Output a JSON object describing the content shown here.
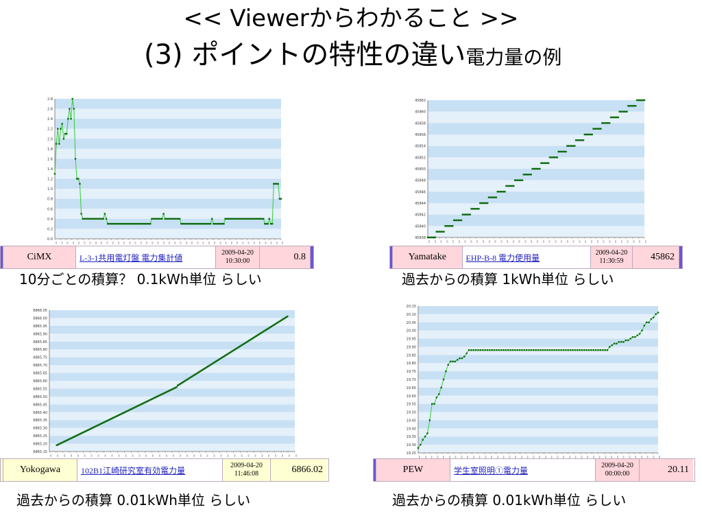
{
  "header": {
    "title": "<< Viewerからわかること >>",
    "subtitle": "(3) ポイントの特性の違い",
    "subtitle_suffix": "電力量の例"
  },
  "colors": {
    "plot_bg_light": "#e4f0fa",
    "plot_bg_dark": "#c8e0f4",
    "line": "#33cc33",
    "marker": "#0e6b0e",
    "cell_pink": "#ffd6db",
    "cell_yellow": "#ffffd4",
    "link": "#1f1fbf"
  },
  "panels": [
    {
      "vendor": "CiMX",
      "point_name": "L-3-1共用電灯盤 電力集計値",
      "date": "2009-04-20",
      "time": "10:30:00",
      "value": "0.8",
      "caption": "10分ごとの積算？ 0.1kWh単位 らしい",
      "theme": "pink"
    },
    {
      "vendor": "Yamatake",
      "point_name": "EHP-B-8 電力使用量",
      "date": "2009-04-20",
      "time": "11:30:59",
      "value": "45862",
      "caption": "過去からの積算 1kWh単位 らしい",
      "theme": "pink"
    },
    {
      "vendor": "Yokogawa",
      "point_name": "102B1江崎研究室有効電力量",
      "date": "2009-04-20",
      "time": "11:46:08",
      "value": "6866.02",
      "caption": "過去からの積算 0.01kWh単位 らしい",
      "theme": "yellow"
    },
    {
      "vendor": "PEW",
      "point_name": "学生室照明①電力量",
      "date": "2009-04-20",
      "time": "00:00:00",
      "value": "20.11",
      "caption": "過去からの積算 0.01kWh単位 らしい",
      "theme": "pink"
    }
  ],
  "chart_data": [
    {
      "type": "line",
      "title": "",
      "ylim": [
        0.0,
        2.8
      ],
      "yticks": [
        "0.0",
        "0.2",
        "0.4",
        "0.6",
        "0.8",
        "1.0",
        "1.2",
        "1.4",
        "1.6",
        "1.8",
        "2.0",
        "2.2",
        "2.4",
        "2.6",
        "2.8"
      ],
      "values": [
        1.3,
        1.9,
        2.2,
        1.9,
        2.2,
        2.3,
        2.0,
        2.1,
        2.1,
        2.4,
        2.6,
        2.4,
        2.8,
        2.6,
        1.6,
        1.2,
        1.2,
        1.1,
        0.5,
        0.4,
        0.4,
        0.4,
        0.4,
        0.4,
        0.4,
        0.4,
        0.4,
        0.4,
        0.4,
        0.4,
        0.4,
        0.4,
        0.4,
        0.4,
        0.5,
        0.4,
        0.3,
        0.3,
        0.3,
        0.3,
        0.3,
        0.3,
        0.3,
        0.3,
        0.3,
        0.3,
        0.3,
        0.3,
        0.3,
        0.3,
        0.3,
        0.3,
        0.3,
        0.3,
        0.3,
        0.3,
        0.3,
        0.3,
        0.3,
        0.3,
        0.3,
        0.3,
        0.3,
        0.3,
        0.3,
        0.3,
        0.4,
        0.4,
        0.4,
        0.4,
        0.4,
        0.4,
        0.4,
        0.4,
        0.5,
        0.4,
        0.4,
        0.4,
        0.4,
        0.4,
        0.4,
        0.4,
        0.4,
        0.4,
        0.4,
        0.4,
        0.3,
        0.3,
        0.3,
        0.3,
        0.3,
        0.3,
        0.3,
        0.3,
        0.3,
        0.3,
        0.3,
        0.3,
        0.3,
        0.3,
        0.3,
        0.3,
        0.3,
        0.3,
        0.3,
        0.3,
        0.3,
        0.4,
        0.3,
        0.3,
        0.3,
        0.3,
        0.3,
        0.3,
        0.3,
        0.3,
        0.4,
        0.4,
        0.4,
        0.4,
        0.4,
        0.4,
        0.4,
        0.4,
        0.4,
        0.4,
        0.4,
        0.4,
        0.4,
        0.4,
        0.4,
        0.4,
        0.4,
        0.4,
        0.4,
        0.4,
        0.4,
        0.4,
        0.4,
        0.4,
        0.4,
        0.4,
        0.4,
        0.3,
        0.3,
        0.3,
        0.4,
        0.3,
        0.3,
        1.1,
        1.1,
        1.1,
        1.1,
        0.8,
        0.8
      ]
    },
    {
      "type": "line",
      "title": "",
      "ylim": [
        45838,
        45862
      ],
      "yticks": [
        "45838",
        "45840",
        "45842",
        "45844",
        "45846",
        "45848",
        "45850",
        "45852",
        "45854",
        "45856",
        "45858",
        "45860",
        "45862"
      ],
      "step": {
        "start": 45838,
        "end": 45862
      }
    },
    {
      "type": "line",
      "title": "",
      "ylim": [
        6865.15,
        6866.05
      ],
      "yticks": [
        "6865.15",
        "6865.20",
        "6865.25",
        "6865.30",
        "6865.35",
        "6865.40",
        "6865.45",
        "6865.50",
        "6865.55",
        "6865.60",
        "6865.65",
        "6865.70",
        "6865.75",
        "6865.80",
        "6865.85",
        "6865.90",
        "6865.95",
        "6866.00",
        "6866.05"
      ],
      "segments": [
        [
          6865.19,
          6865.56
        ],
        [
          6865.57,
          6866.01
        ]
      ]
    },
    {
      "type": "line",
      "title": "",
      "ylim": [
        19.25,
        20.15
      ],
      "yticks": [
        "19.25",
        "19.30",
        "19.35",
        "19.40",
        "19.45",
        "19.50",
        "19.55",
        "19.60",
        "19.65",
        "19.70",
        "19.75",
        "19.80",
        "19.85",
        "19.90",
        "19.95",
        "20.00",
        "20.05",
        "20.10",
        "20.15"
      ],
      "values": [
        19.28,
        19.3,
        19.33,
        19.35,
        19.37,
        19.45,
        19.55,
        19.55,
        19.59,
        19.61,
        19.65,
        19.7,
        19.75,
        19.79,
        19.81,
        19.81,
        19.81,
        19.82,
        19.83,
        19.83,
        19.84,
        19.86,
        19.88,
        19.88,
        19.88,
        19.88,
        19.88,
        19.88,
        19.88,
        19.88,
        19.88,
        19.88,
        19.88,
        19.88,
        19.88,
        19.88,
        19.88,
        19.88,
        19.88,
        19.88,
        19.88,
        19.88,
        19.88,
        19.88,
        19.88,
        19.88,
        19.88,
        19.88,
        19.88,
        19.88,
        19.88,
        19.88,
        19.88,
        19.88,
        19.88,
        19.88,
        19.88,
        19.88,
        19.88,
        19.88,
        19.88,
        19.88,
        19.88,
        19.88,
        19.88,
        19.88,
        19.88,
        19.88,
        19.88,
        19.88,
        19.88,
        19.88,
        19.88,
        19.88,
        19.88,
        19.88,
        19.88,
        19.88,
        19.88,
        19.88,
        19.88,
        19.88,
        19.88,
        19.9,
        19.91,
        19.92,
        19.92,
        19.93,
        19.93,
        19.93,
        19.94,
        19.94,
        19.95,
        19.96,
        19.96,
        19.97,
        19.98,
        20.0,
        20.03,
        20.05,
        20.05,
        20.07,
        20.08,
        20.1,
        20.11
      ]
    }
  ]
}
